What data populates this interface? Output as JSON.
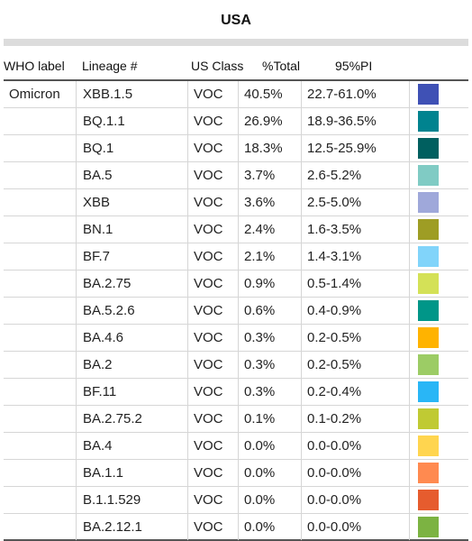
{
  "title": "USA",
  "header": {
    "who_label": "WHO label",
    "lineage": "Lineage #",
    "us_class": "US Class",
    "pct_total": "%Total",
    "pi": "95%PI"
  },
  "who_group": "Omicron",
  "rows": [
    {
      "lineage": "XBB.1.5",
      "us_class": "VOC",
      "pct_total": "40.5%",
      "pi": "22.7-61.0%",
      "color": "#3f51b5"
    },
    {
      "lineage": "BQ.1.1",
      "us_class": "VOC",
      "pct_total": "26.9%",
      "pi": "18.9-36.5%",
      "color": "#00838f"
    },
    {
      "lineage": "BQ.1",
      "us_class": "VOC",
      "pct_total": "18.3%",
      "pi": "12.5-25.9%",
      "color": "#005f5f"
    },
    {
      "lineage": "BA.5",
      "us_class": "VOC",
      "pct_total": "3.7%",
      "pi": "2.6-5.2%",
      "color": "#80cbc4"
    },
    {
      "lineage": "XBB",
      "us_class": "VOC",
      "pct_total": "3.6%",
      "pi": "2.5-5.0%",
      "color": "#9fa8da"
    },
    {
      "lineage": "BN.1",
      "us_class": "VOC",
      "pct_total": "2.4%",
      "pi": "1.6-3.5%",
      "color": "#9e9d24"
    },
    {
      "lineage": "BF.7",
      "us_class": "VOC",
      "pct_total": "2.1%",
      "pi": "1.4-3.1%",
      "color": "#81d4fa"
    },
    {
      "lineage": "BA.2.75",
      "us_class": "VOC",
      "pct_total": "0.9%",
      "pi": "0.5-1.4%",
      "color": "#d4e157"
    },
    {
      "lineage": "BA.5.2.6",
      "us_class": "VOC",
      "pct_total": "0.6%",
      "pi": "0.4-0.9%",
      "color": "#009688"
    },
    {
      "lineage": "BA.4.6",
      "us_class": "VOC",
      "pct_total": "0.3%",
      "pi": "0.2-0.5%",
      "color": "#ffb300"
    },
    {
      "lineage": "BA.2",
      "us_class": "VOC",
      "pct_total": "0.3%",
      "pi": "0.2-0.5%",
      "color": "#9ccc65"
    },
    {
      "lineage": "BF.11",
      "us_class": "VOC",
      "pct_total": "0.3%",
      "pi": "0.2-0.4%",
      "color": "#29b6f6"
    },
    {
      "lineage": "BA.2.75.2",
      "us_class": "VOC",
      "pct_total": "0.1%",
      "pi": "0.1-0.2%",
      "color": "#c0ca33"
    },
    {
      "lineage": "BA.4",
      "us_class": "VOC",
      "pct_total": "0.0%",
      "pi": "0.0-0.0%",
      "color": "#ffd54f"
    },
    {
      "lineage": "BA.1.1",
      "us_class": "VOC",
      "pct_total": "0.0%",
      "pi": "0.0-0.0%",
      "color": "#ff8a50"
    },
    {
      "lineage": "B.1.1.529",
      "us_class": "VOC",
      "pct_total": "0.0%",
      "pi": "0.0-0.0%",
      "color": "#e65c2e"
    },
    {
      "lineage": "BA.2.12.1",
      "us_class": "VOC",
      "pct_total": "0.0%",
      "pi": "0.0-0.0%",
      "color": "#7cb342"
    }
  ]
}
